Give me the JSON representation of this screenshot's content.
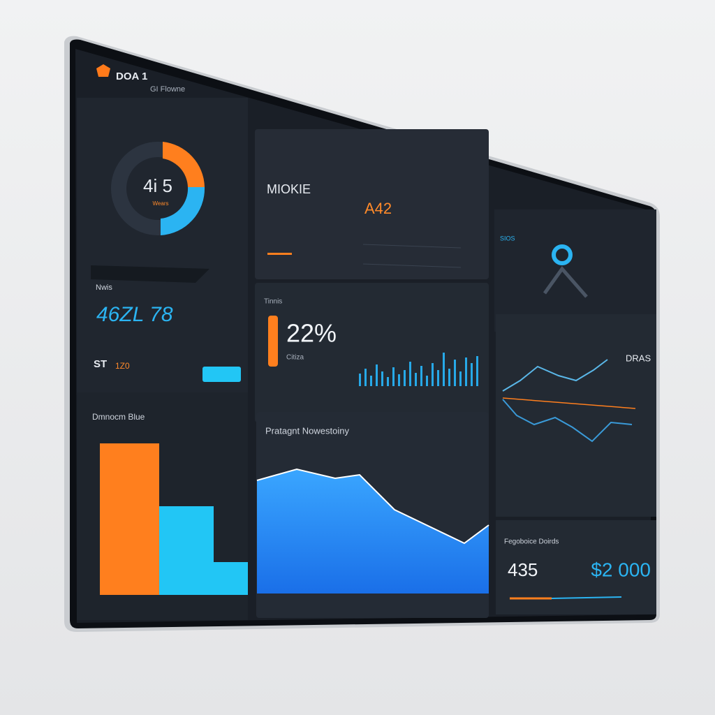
{
  "header": {
    "logo": "DOA 1",
    "subtitle": "GI Flowne"
  },
  "donut": {
    "value": "4i 5",
    "label": "Wears"
  },
  "kpi": {
    "label": "Nwis",
    "value": "46ZL 78",
    "note": "ST",
    "note_value": "1Z0"
  },
  "card_a": {
    "title": "MIOKIE",
    "value": "A42"
  },
  "card_b": {
    "label": "Tinnis",
    "value": "22%",
    "caption": "Citiza"
  },
  "card_c": {
    "title": "SIOS"
  },
  "card_d": {
    "title": "DRAS"
  },
  "bar_panel": {
    "title": "Dmnocm Blue"
  },
  "area_panel": {
    "title": "Pratagnt Nowestoiny"
  },
  "totals": {
    "title": "Fegoboice Doirds",
    "left": "435",
    "right": "$2 000"
  }
}
